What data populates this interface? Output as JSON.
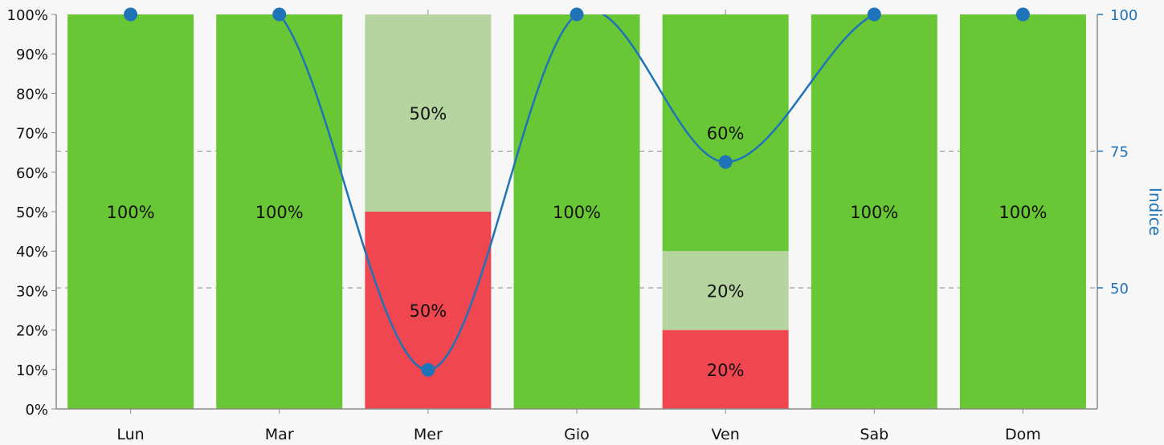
{
  "chart_data": {
    "type": "bar",
    "stacked": true,
    "categories": [
      "Lun",
      "Mar",
      "Mer",
      "Gio",
      "Ven",
      "Sab",
      "Dom"
    ],
    "series": [
      {
        "color": "#ef4650",
        "values": [
          0,
          0,
          50,
          0,
          20,
          0,
          0
        ],
        "labels": [
          "",
          "",
          "50%",
          "",
          "20%",
          "",
          ""
        ]
      },
      {
        "color": "#b5d49f",
        "values": [
          0,
          0,
          50,
          0,
          20,
          0,
          0
        ],
        "labels": [
          "",
          "",
          "50%",
          "",
          "20%",
          "",
          ""
        ]
      },
      {
        "color": "#69c736",
        "values": [
          100,
          100,
          0,
          100,
          60,
          100,
          100
        ],
        "labels": [
          "100%",
          "100%",
          "",
          "100%",
          "60%",
          "100%",
          "100%"
        ]
      }
    ],
    "line": {
      "color": "#1f73b8",
      "values": [
        100,
        100,
        35,
        100,
        73,
        100,
        100
      ],
      "axis": "right",
      "smooth": true
    },
    "y_left": {
      "min": 0,
      "max": 100,
      "ticks": [
        "0%",
        "10%",
        "20%",
        "30%",
        "40%",
        "50%",
        "60%",
        "70%",
        "80%",
        "90%",
        "100%"
      ]
    },
    "y_right": {
      "label": "Indice",
      "ticks": [
        "50",
        "75",
        "100"
      ],
      "tick_values": [
        50,
        75,
        100
      ],
      "visible_min": 32,
      "max": 100
    },
    "grid": "dashed at right-axis ticks"
  }
}
